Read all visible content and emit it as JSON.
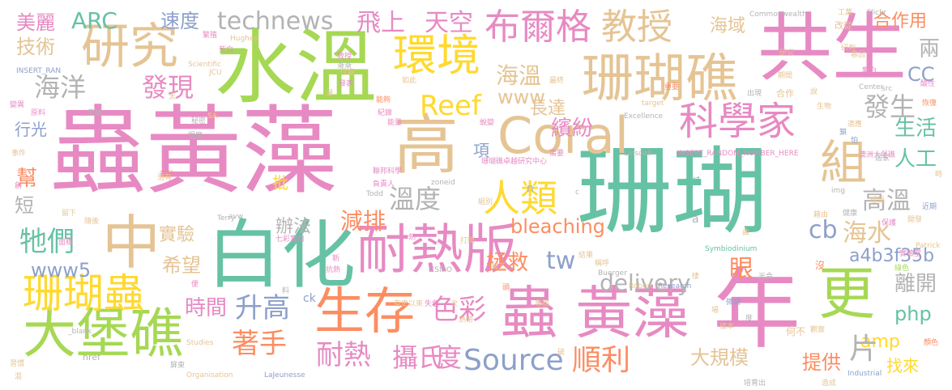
{
  "palette": {
    "teal": "#66c2a5",
    "orange": "#fc8d62",
    "blue": "#8da0cb",
    "pink": "#e78ac3",
    "green": "#a6d854",
    "yellow": "#ffd92f",
    "tan": "#e5c494",
    "gray": "#b3b3b3"
  },
  "words": [
    {
      "text": "蟲黃藻",
      "color": "#e78ac3"
    },
    {
      "text": "珊瑚",
      "color": "#66c2a5"
    },
    {
      "text": "白化",
      "color": "#66c2a5"
    },
    {
      "text": "水溫",
      "color": "#a6d854"
    },
    {
      "text": "共生",
      "color": "#e78ac3"
    },
    {
      "text": "年",
      "color": "#e78ac3"
    },
    {
      "text": "耐熱版",
      "color": "#e78ac3"
    },
    {
      "text": "高",
      "color": "#e5c494"
    },
    {
      "text": "Coral",
      "color": "#e5c494"
    },
    {
      "text": "珊瑚礁",
      "color": "#e5c494"
    },
    {
      "text": "蟲 黃藻",
      "color": "#e78ac3"
    },
    {
      "text": "大堡礁",
      "color": "#a6d854"
    },
    {
      "text": "更",
      "color": "#a6d854"
    },
    {
      "text": "中",
      "color": "#e5c494"
    },
    {
      "text": "研究",
      "color": "#e5c494"
    },
    {
      "text": "環境",
      "color": "#ffd92f"
    },
    {
      "text": "生存",
      "color": "#fc8d62"
    },
    {
      "text": "科學家",
      "color": "#e78ac3"
    },
    {
      "text": "珊瑚蟲",
      "color": "#ffd92f"
    },
    {
      "text": "布爾格",
      "color": "#e78ac3"
    },
    {
      "text": "教授",
      "color": "#e5c494"
    },
    {
      "text": "人類",
      "color": "#ffd92f"
    },
    {
      "text": "組",
      "color": "#e5c494"
    },
    {
      "text": "Source",
      "color": "#8da0cb"
    },
    {
      "text": "Reef",
      "color": "#ffd92f"
    },
    {
      "text": "海洋",
      "color": "#b3b3b3"
    },
    {
      "text": "發現",
      "color": "#e78ac3"
    },
    {
      "text": "飛上",
      "color": "#e78ac3"
    },
    {
      "text": "天空",
      "color": "#e78ac3"
    },
    {
      "text": "牠們",
      "color": "#66c2a5"
    },
    {
      "text": "溫度",
      "color": "#b3b3b3"
    },
    {
      "text": "色彩",
      "color": "#e78ac3"
    },
    {
      "text": "發生",
      "color": "#b3b3b3"
    },
    {
      "text": "高溫",
      "color": "#b3b3b3"
    },
    {
      "text": "海水",
      "color": "#e5c494"
    },
    {
      "text": "耐熱",
      "color": "#e78ac3"
    },
    {
      "text": "攝氏",
      "color": "#e78ac3"
    },
    {
      "text": "度",
      "color": "#e78ac3"
    },
    {
      "text": "順利",
      "color": "#fc8d62"
    },
    {
      "text": "著手",
      "color": "#fc8d62"
    },
    {
      "text": "升高",
      "color": "#8da0cb"
    },
    {
      "text": "時間",
      "color": "#e78ac3"
    },
    {
      "text": "technews",
      "color": "#b3b3b3"
    },
    {
      "text": "速度",
      "color": "#8da0cb"
    },
    {
      "text": "美麗",
      "color": "#e78ac3"
    },
    {
      "text": "ARC",
      "color": "#66c2a5"
    },
    {
      "text": "技術",
      "color": "#e5c494"
    },
    {
      "text": "海溫",
      "color": "#e5c494"
    },
    {
      "text": "www",
      "color": "#e5c494"
    },
    {
      "text": "長達",
      "color": "#e5c494"
    },
    {
      "text": "繽紛",
      "color": "#e78ac3"
    },
    {
      "text": "項",
      "color": "#8da0cb"
    },
    {
      "text": "批",
      "color": "#ffd92f"
    },
    {
      "text": "減排",
      "color": "#fc8d62"
    },
    {
      "text": "bleaching",
      "color": "#fc8d62"
    },
    {
      "text": "delivery",
      "color": "#b3b3b3"
    },
    {
      "text": "希望",
      "color": "#e5c494"
    },
    {
      "text": "實驗",
      "color": "#e5c494"
    },
    {
      "text": "辦法",
      "color": "#b3b3b3"
    },
    {
      "text": "拯救",
      "color": "#fc8d62"
    },
    {
      "text": "tw",
      "color": "#8da0cb"
    },
    {
      "text": "眼",
      "color": "#fc8d62"
    },
    {
      "text": "cb",
      "color": "#8da0cb"
    },
    {
      "text": "a4b3f35b",
      "color": "#8da0cb"
    },
    {
      "text": "生活",
      "color": "#66c2a5"
    },
    {
      "text": "人工",
      "color": "#66c2a5"
    },
    {
      "text": "離開",
      "color": "#b3b3b3"
    },
    {
      "text": "php",
      "color": "#66c2a5"
    },
    {
      "text": "amp",
      "color": "#ffd92f"
    },
    {
      "text": "片",
      "color": "#b3b3b3"
    },
    {
      "text": "提供",
      "color": "#fc8d62"
    },
    {
      "text": "找來",
      "color": "#ffd92f"
    },
    {
      "text": "大規模",
      "color": "#e5c494"
    },
    {
      "text": "合作用",
      "color": "#fc8d62"
    },
    {
      "text": "海域",
      "color": "#e5c494"
    },
    {
      "text": "兩",
      "color": "#b3b3b3"
    },
    {
      "text": "CC",
      "color": "#8da0cb"
    },
    {
      "text": "行光",
      "color": "#8da0cb"
    },
    {
      "text": "幫",
      "color": "#fc8d62"
    },
    {
      "text": "短",
      "color": "#b3b3b3"
    },
    {
      "text": "www5",
      "color": "#8da0cb"
    },
    {
      "text": "Commonwealth",
      "color": "#b3b3b3"
    },
    {
      "text": "Flickr",
      "color": "#b3b3b3"
    },
    {
      "text": "工業",
      "color": "#e5c494"
    },
    {
      "text": "改從",
      "color": "#e5c494"
    },
    {
      "text": "Hughes",
      "color": "#e5c494"
    },
    {
      "text": "Scientific",
      "color": "#e5c494"
    },
    {
      "text": "JCU",
      "color": "#e5c494"
    },
    {
      "text": "Center",
      "color": "#b3b3b3"
    },
    {
      "text": "Excellence",
      "color": "#b3b3b3"
    },
    {
      "text": "target",
      "color": "#e5c494"
    },
    {
      "text": "INSERT_RANDOM_NUMBER_HERE",
      "color": "#e78ac3"
    },
    {
      "text": "INSERT_RAN",
      "color": "#8da0cb"
    },
    {
      "text": "Linsdell",
      "color": "#b3b3b3"
    },
    {
      "text": "Symbiodinium",
      "color": "#66c2a5"
    },
    {
      "text": "Research",
      "color": "#8da0cb"
    },
    {
      "text": "Robert",
      "color": "#e5c494"
    },
    {
      "text": "Patrick",
      "color": "#e5c494"
    },
    {
      "text": "Terry",
      "color": "#b3b3b3"
    },
    {
      "text": "Todd",
      "color": "#b3b3b3"
    },
    {
      "text": "CSIRO",
      "color": "#b3b3b3"
    },
    {
      "text": "Buerger",
      "color": "#b3b3b3"
    },
    {
      "text": "zoneid",
      "color": "#b3b3b3"
    },
    {
      "text": "Industrial",
      "color": "#8da0cb"
    },
    {
      "text": "Organisation",
      "color": "#e5c494"
    },
    {
      "text": "LaJeunesse",
      "color": "#8da0cb"
    },
    {
      "text": "Studies",
      "color": "#e5c494"
    },
    {
      "text": "href",
      "color": "#b3b3b3"
    },
    {
      "text": "_blank",
      "color": "#b3b3b3"
    },
    {
      "text": "ck",
      "color": "#8da0cb"
    },
    {
      "text": "n",
      "color": "#b3b3b3"
    },
    {
      "text": "a",
      "color": "#b3b3b3"
    },
    {
      "text": "c",
      "color": "#b3b3b3"
    },
    {
      "text": "img",
      "color": "#b3b3b3"
    },
    {
      "text": "src",
      "color": "#b3b3b3"
    },
    {
      "text": "SA",
      "color": "#ffd92f"
    },
    {
      "text": "avw",
      "color": "#b3b3b3"
    },
    {
      "text": "七彩寶目",
      "color": "#e78ac3"
    },
    {
      "text": "澳洲大堡礁",
      "color": "#e78ac3"
    },
    {
      "text": "聯邦科學",
      "color": "#e78ac3"
    },
    {
      "text": "珊瑚礁卓越研究中心",
      "color": "#e78ac3"
    },
    {
      "text": "負責人",
      "color": "#e78ac3"
    },
    {
      "text": "實驗室",
      "color": "#e5c494"
    },
    {
      "text": "有史以來",
      "color": "#e78ac3"
    },
    {
      "text": "培育出",
      "color": "#b3b3b3"
    },
    {
      "text": "微調",
      "color": "#8da0cb"
    },
    {
      "text": "何不",
      "color": "#e5c494"
    },
    {
      "text": "觀察",
      "color": "#e5c494"
    },
    {
      "text": "沒",
      "color": "#fc8d62"
    },
    {
      "text": "綠色",
      "color": "#a6d854"
    },
    {
      "text": "顏色",
      "color": "#fc8d62"
    },
    {
      "text": "居家",
      "color": "#b3b3b3"
    },
    {
      "text": "漸漸",
      "color": "#b3b3b3"
    },
    {
      "text": "教授",
      "color": "#e78ac3"
    },
    {
      "text": "住處",
      "color": "#e5c494"
    },
    {
      "text": "最終",
      "color": "#e5c494"
    },
    {
      "text": "結果",
      "color": "#e5c494"
    },
    {
      "text": "研究",
      "color": "#e5c494"
    },
    {
      "text": "能夠",
      "color": "#fc8d62"
    },
    {
      "text": "繁殖",
      "color": "#e78ac3"
    },
    {
      "text": "死白",
      "color": "#e78ac3"
    },
    {
      "text": "如此",
      "color": "#e5c494"
    },
    {
      "text": "重要",
      "color": "#fc8d62"
    },
    {
      "text": "藉由",
      "color": "#e5c494"
    },
    {
      "text": "健康",
      "color": "#b3b3b3"
    },
    {
      "text": "近期",
      "color": "#8da0cb"
    },
    {
      "text": "發表",
      "color": "#e78ac3"
    },
    {
      "text": "變異",
      "color": "#e78ac3"
    },
    {
      "text": "原料",
      "color": "#e78ac3"
    },
    {
      "text": "秘密",
      "color": "#b3b3b3"
    },
    {
      "text": "紀錄",
      "color": "#e78ac3"
    },
    {
      "text": "程度",
      "color": "#b3b3b3"
    },
    {
      "text": "五彩",
      "color": "#fc8d62"
    },
    {
      "text": "事件",
      "color": "#e5c494"
    },
    {
      "text": "研判",
      "color": "#e5c494"
    },
    {
      "text": "意味",
      "color": "#b3b3b3"
    },
    {
      "text": "期間",
      "color": "#e5c494"
    },
    {
      "text": "基因",
      "color": "#e5c494"
    },
    {
      "text": "攀白",
      "color": "#e78ac3"
    },
    {
      "text": "能量",
      "color": "#e78ac3"
    },
    {
      "text": "蛻變",
      "color": "#e78ac3"
    },
    {
      "text": "酸性",
      "color": "#e78ac3"
    },
    {
      "text": "需要",
      "color": "#e78ac3"
    },
    {
      "text": "恢復",
      "color": "#fc8d62"
    },
    {
      "text": "出現",
      "color": "#b3b3b3"
    },
    {
      "text": "合作",
      "color": "#e5c494"
    },
    {
      "text": "說",
      "color": "#e5c494"
    },
    {
      "text": "生物",
      "color": "#e5c494"
    },
    {
      "text": "鎖",
      "color": "#8da0cb"
    },
    {
      "text": "怕",
      "color": "#8da0cb"
    },
    {
      "text": "時",
      "color": "#e5c494"
    },
    {
      "text": "水域",
      "color": "#66c2a5"
    },
    {
      "text": "經過",
      "color": "#e5c494"
    },
    {
      "text": "適應",
      "color": "#e5c494"
    },
    {
      "text": "保護",
      "color": "#e78ac3"
    },
    {
      "text": "開發",
      "color": "#e5c494"
    },
    {
      "text": "便",
      "color": "#e78ac3"
    },
    {
      "text": "料",
      "color": "#b3b3b3"
    },
    {
      "text": "曲",
      "color": "#e5c494"
    },
    {
      "text": "棲",
      "color": "#e5c494"
    },
    {
      "text": "度",
      "color": "#b3b3b3"
    },
    {
      "text": "破",
      "color": "#e5c494"
    },
    {
      "text": "頭",
      "color": "#fc8d62"
    },
    {
      "text": "久",
      "color": "#b3b3b3"
    },
    {
      "text": "太",
      "color": "#e5c494"
    },
    {
      "text": "灑",
      "color": "#e5c494"
    },
    {
      "text": "創",
      "color": "#e78ac3"
    },
    {
      "text": "留下",
      "color": "#e5c494"
    },
    {
      "text": "隨後",
      "color": "#e5c494"
    },
    {
      "text": "面積",
      "color": "#e78ac3"
    },
    {
      "text": "屏東",
      "color": "#b3b3b3"
    },
    {
      "text": "習慣",
      "color": "#e5c494"
    },
    {
      "text": "混",
      "color": "#e5c494"
    },
    {
      "text": "潛有",
      "color": "#e5c494"
    },
    {
      "text": "熱",
      "color": "#e78ac3"
    },
    {
      "text": "抗熱",
      "color": "#e78ac3"
    },
    {
      "text": "新",
      "color": "#e78ac3"
    },
    {
      "text": "次",
      "color": "#e5c494"
    },
    {
      "text": "失色",
      "color": "#e78ac3"
    },
    {
      "text": "熱帶",
      "color": "#e5c494"
    },
    {
      "text": "專稿",
      "color": "#e5c494"
    },
    {
      "text": "場",
      "color": "#e5c494"
    },
    {
      "text": "樣本",
      "color": "#e5c494"
    },
    {
      "text": "稱呼",
      "color": "#e5c494"
    },
    {
      "text": "光合",
      "color": "#e5c494"
    },
    {
      "text": "組別",
      "color": "#b3b3b3"
    },
    {
      "text": "第三",
      "color": "#e5c494"
    },
    {
      "text": "打開",
      "color": "#e5c494"
    },
    {
      "text": "造成",
      "color": "#e5c494"
    },
    {
      "text": "演化",
      "color": "#e5c494"
    }
  ]
}
